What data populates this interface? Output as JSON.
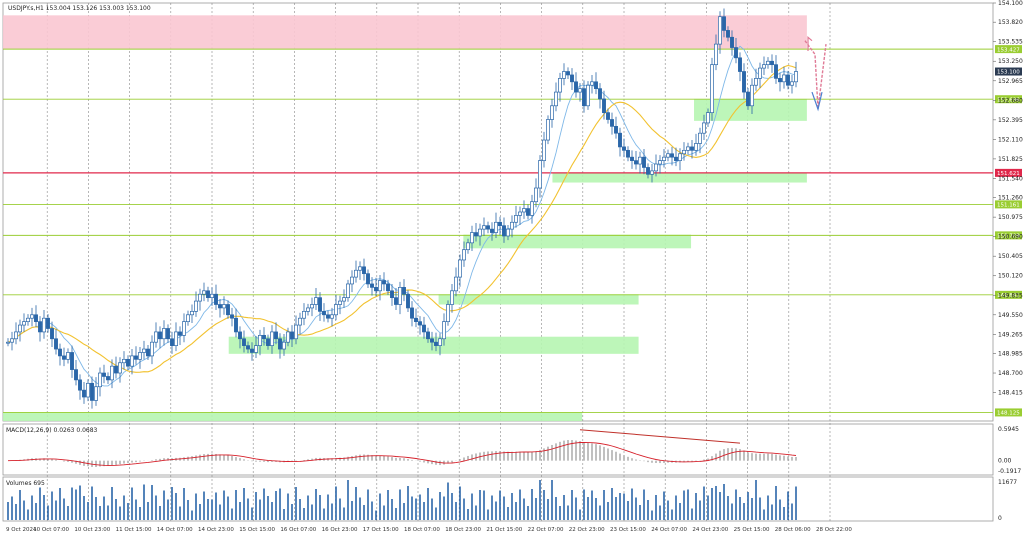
{
  "window": {
    "symbol_info": "USDJPY.s,H1  153.004 153.126 153.003 153.100",
    "macd_label": "MACD(12,26,9) 0.0263 0.0683",
    "volume_label": "Volumes 695"
  },
  "chart_data": {
    "type": "candlestick",
    "title": "USDJPY.s,H1",
    "ohlc_last": {
      "open": 153.004,
      "high": 153.126,
      "low": 153.003,
      "close": 153.1
    },
    "current_price": 153.1,
    "price_axis": {
      "range": [
        148.13,
        154.1
      ],
      "ticks": [
        154.1,
        153.82,
        153.535,
        153.25,
        152.965,
        152.68,
        152.395,
        152.11,
        151.825,
        151.54,
        151.26,
        150.975,
        150.69,
        150.405,
        150.12,
        149.835,
        149.55,
        149.265,
        148.985,
        148.7,
        148.415
      ]
    },
    "time_axis": {
      "labels": [
        "9 Oct 2024",
        "10 Oct 07:00",
        "10 Oct 23:00",
        "11 Oct 15:00",
        "14 Oct 07:00",
        "14 Oct 23:00",
        "15 Oct 15:00",
        "16 Oct 07:00",
        "16 Oct 23:00",
        "17 Oct 15:00",
        "18 Oct 07:00",
        "18 Oct 23:00",
        "21 Oct 15:00",
        "22 Oct 07:00",
        "22 Oct 23:00",
        "23 Oct 15:00",
        "24 Oct 07:00",
        "24 Oct 23:00",
        "25 Oct 15:00",
        "28 Oct 06:00",
        "28 Oct 22:00"
      ]
    },
    "levels": [
      {
        "price": 153.427,
        "label": "153.427",
        "color": "#9acd32"
      },
      {
        "price": 152.696,
        "label": "152.696",
        "color": "#9acd32"
      },
      {
        "price": 151.621,
        "label": "151.621",
        "color": "#e0284b"
      },
      {
        "price": 151.161,
        "label": "151.161",
        "color": "#9acd32"
      },
      {
        "price": 150.709,
        "label": "150.709",
        "color": "#9acd32"
      },
      {
        "price": 149.841,
        "label": "149.841",
        "color": "#9acd32"
      },
      {
        "price": 148.125,
        "label": "148.125",
        "color": "#9acd32"
      }
    ],
    "current_price_label": "153.100",
    "zones": [
      {
        "kind": "resistance",
        "color": "#f9c6d1",
        "top": 153.92,
        "bottom": 153.43,
        "from": 0.0,
        "to": 0.812
      },
      {
        "kind": "support",
        "color": "#b6f5b1",
        "top": 152.7,
        "bottom": 152.38,
        "from": 0.698,
        "to": 0.812
      },
      {
        "kind": "support",
        "color": "#b6f5b1",
        "top": 151.621,
        "bottom": 151.48,
        "from": 0.555,
        "to": 0.812
      },
      {
        "kind": "support",
        "color": "#b6f5b1",
        "top": 150.72,
        "bottom": 150.52,
        "from": 0.465,
        "to": 0.695
      },
      {
        "kind": "support",
        "color": "#b6f5b1",
        "top": 149.85,
        "bottom": 149.7,
        "from": 0.44,
        "to": 0.642
      },
      {
        "kind": "support",
        "color": "#b6f5b1",
        "top": 149.23,
        "bottom": 148.98,
        "from": 0.228,
        "to": 0.642
      },
      {
        "kind": "support",
        "color": "#b6f5b1",
        "top": 148.125,
        "bottom": 148.0,
        "from": 0.0,
        "to": 0.585
      }
    ],
    "candles_close": [
      149.15,
      149.2,
      149.3,
      149.4,
      149.45,
      149.5,
      149.55,
      149.45,
      149.3,
      149.5,
      149.35,
      149.2,
      149.05,
      148.95,
      148.9,
      149.0,
      148.75,
      148.6,
      148.45,
      148.35,
      148.55,
      148.3,
      148.5,
      148.7,
      148.65,
      148.6,
      148.8,
      148.7,
      148.85,
      148.9,
      148.8,
      148.95,
      148.9,
      149.0,
      149.05,
      148.95,
      149.15,
      149.3,
      149.2,
      149.35,
      149.2,
      149.1,
      149.3,
      149.25,
      149.45,
      149.55,
      149.6,
      149.75,
      149.85,
      149.9,
      149.8,
      149.85,
      149.7,
      149.65,
      149.7,
      149.55,
      149.5,
      149.3,
      149.2,
      149.1,
      149.05,
      149.0,
      149.1,
      149.25,
      149.2,
      149.1,
      149.3,
      149.2,
      149.05,
      149.15,
      149.3,
      149.2,
      149.4,
      149.5,
      149.6,
      149.65,
      149.7,
      149.8,
      149.6,
      149.55,
      149.5,
      149.55,
      149.7,
      149.75,
      149.8,
      150.0,
      150.1,
      150.2,
      150.25,
      150.15,
      150.0,
      149.95,
      149.9,
      150.05,
      150.0,
      149.9,
      149.8,
      149.7,
      149.95,
      149.85,
      149.65,
      149.5,
      149.45,
      149.4,
      149.3,
      149.2,
      149.15,
      149.1,
      149.2,
      149.45,
      149.7,
      149.9,
      150.1,
      150.35,
      150.5,
      150.6,
      150.75,
      150.7,
      150.8,
      150.85,
      150.8,
      150.75,
      150.9,
      150.85,
      150.7,
      150.8,
      150.9,
      151.0,
      151.05,
      151.1,
      151.0,
      151.2,
      151.4,
      151.8,
      152.1,
      152.4,
      152.6,
      152.8,
      153.0,
      153.1,
      153.05,
      152.95,
      152.8,
      152.85,
      152.6,
      152.9,
      152.95,
      152.85,
      152.7,
      152.5,
      152.4,
      152.3,
      152.2,
      152.0,
      151.95,
      151.85,
      151.8,
      151.75,
      151.85,
      151.7,
      151.6,
      151.65,
      151.75,
      151.8,
      151.85,
      151.9,
      151.85,
      151.8,
      151.9,
      151.95,
      152.0,
      151.95,
      152.05,
      152.2,
      152.35,
      152.5,
      153.2,
      153.5,
      153.9,
      153.7,
      153.6,
      153.45,
      153.3,
      153.1,
      152.8,
      152.6,
      152.9,
      153.0,
      153.15,
      153.2,
      153.25,
      153.2,
      153.0,
      152.95,
      153.05,
      152.9,
      152.95,
      153.1
    ],
    "macd": {
      "label": "MACD(12,26,9) 0.0263 0.0683",
      "ticks": [
        0.5945,
        0.0,
        -0.1917
      ],
      "range": [
        -0.25,
        0.65
      ]
    },
    "volume": {
      "label": "Volumes 695",
      "ticks": [
        11677,
        0
      ],
      "max": 11677
    }
  }
}
